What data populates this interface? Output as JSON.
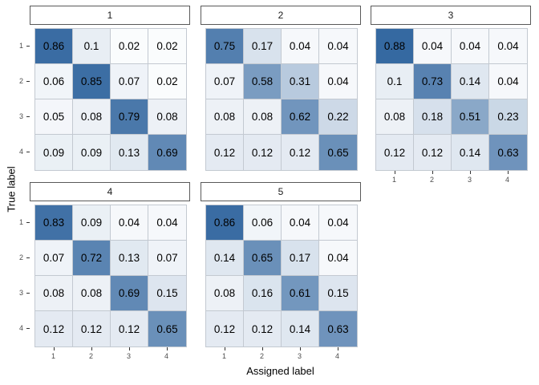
{
  "chart_data": {
    "type": "heatmap",
    "title": "",
    "xlabel": "Assigned label",
    "ylabel": "True label",
    "x_ticks": [
      "1",
      "2",
      "3",
      "4"
    ],
    "y_ticks": [
      "1",
      "2",
      "3",
      "4"
    ],
    "legend": "none",
    "grid": "off",
    "value_range": [
      0,
      1
    ],
    "facets": [
      {
        "label": "1",
        "matrix": [
          [
            0.86,
            0.1,
            0.02,
            0.02
          ],
          [
            0.06,
            0.85,
            0.07,
            0.02
          ],
          [
            0.05,
            0.08,
            0.79,
            0.08
          ],
          [
            0.09,
            0.09,
            0.13,
            0.69
          ]
        ]
      },
      {
        "label": "2",
        "matrix": [
          [
            0.75,
            0.17,
            0.04,
            0.04
          ],
          [
            0.07,
            0.58,
            0.31,
            0.04
          ],
          [
            0.08,
            0.08,
            0.62,
            0.22
          ],
          [
            0.12,
            0.12,
            0.12,
            0.65
          ]
        ]
      },
      {
        "label": "3",
        "matrix": [
          [
            0.88,
            0.04,
            0.04,
            0.04
          ],
          [
            0.1,
            0.73,
            0.14,
            0.04
          ],
          [
            0.08,
            0.18,
            0.51,
            0.23
          ],
          [
            0.12,
            0.12,
            0.14,
            0.63
          ]
        ]
      },
      {
        "label": "4",
        "matrix": [
          [
            0.83,
            0.09,
            0.04,
            0.04
          ],
          [
            0.07,
            0.72,
            0.13,
            0.07
          ],
          [
            0.08,
            0.08,
            0.69,
            0.15
          ],
          [
            0.12,
            0.12,
            0.12,
            0.65
          ]
        ]
      },
      {
        "label": "5",
        "matrix": [
          [
            0.86,
            0.06,
            0.04,
            0.04
          ],
          [
            0.14,
            0.65,
            0.17,
            0.04
          ],
          [
            0.08,
            0.16,
            0.61,
            0.15
          ],
          [
            0.12,
            0.12,
            0.14,
            0.63
          ]
        ]
      }
    ],
    "colors": {
      "fill_low": "#ffffff",
      "fill_high": "#1a5494",
      "cell_border": "#c3c9d1",
      "strip_border": "#595959",
      "tick_mark": "#333333",
      "tick_text": "#4d4d4d",
      "value_text": "#000000"
    }
  }
}
